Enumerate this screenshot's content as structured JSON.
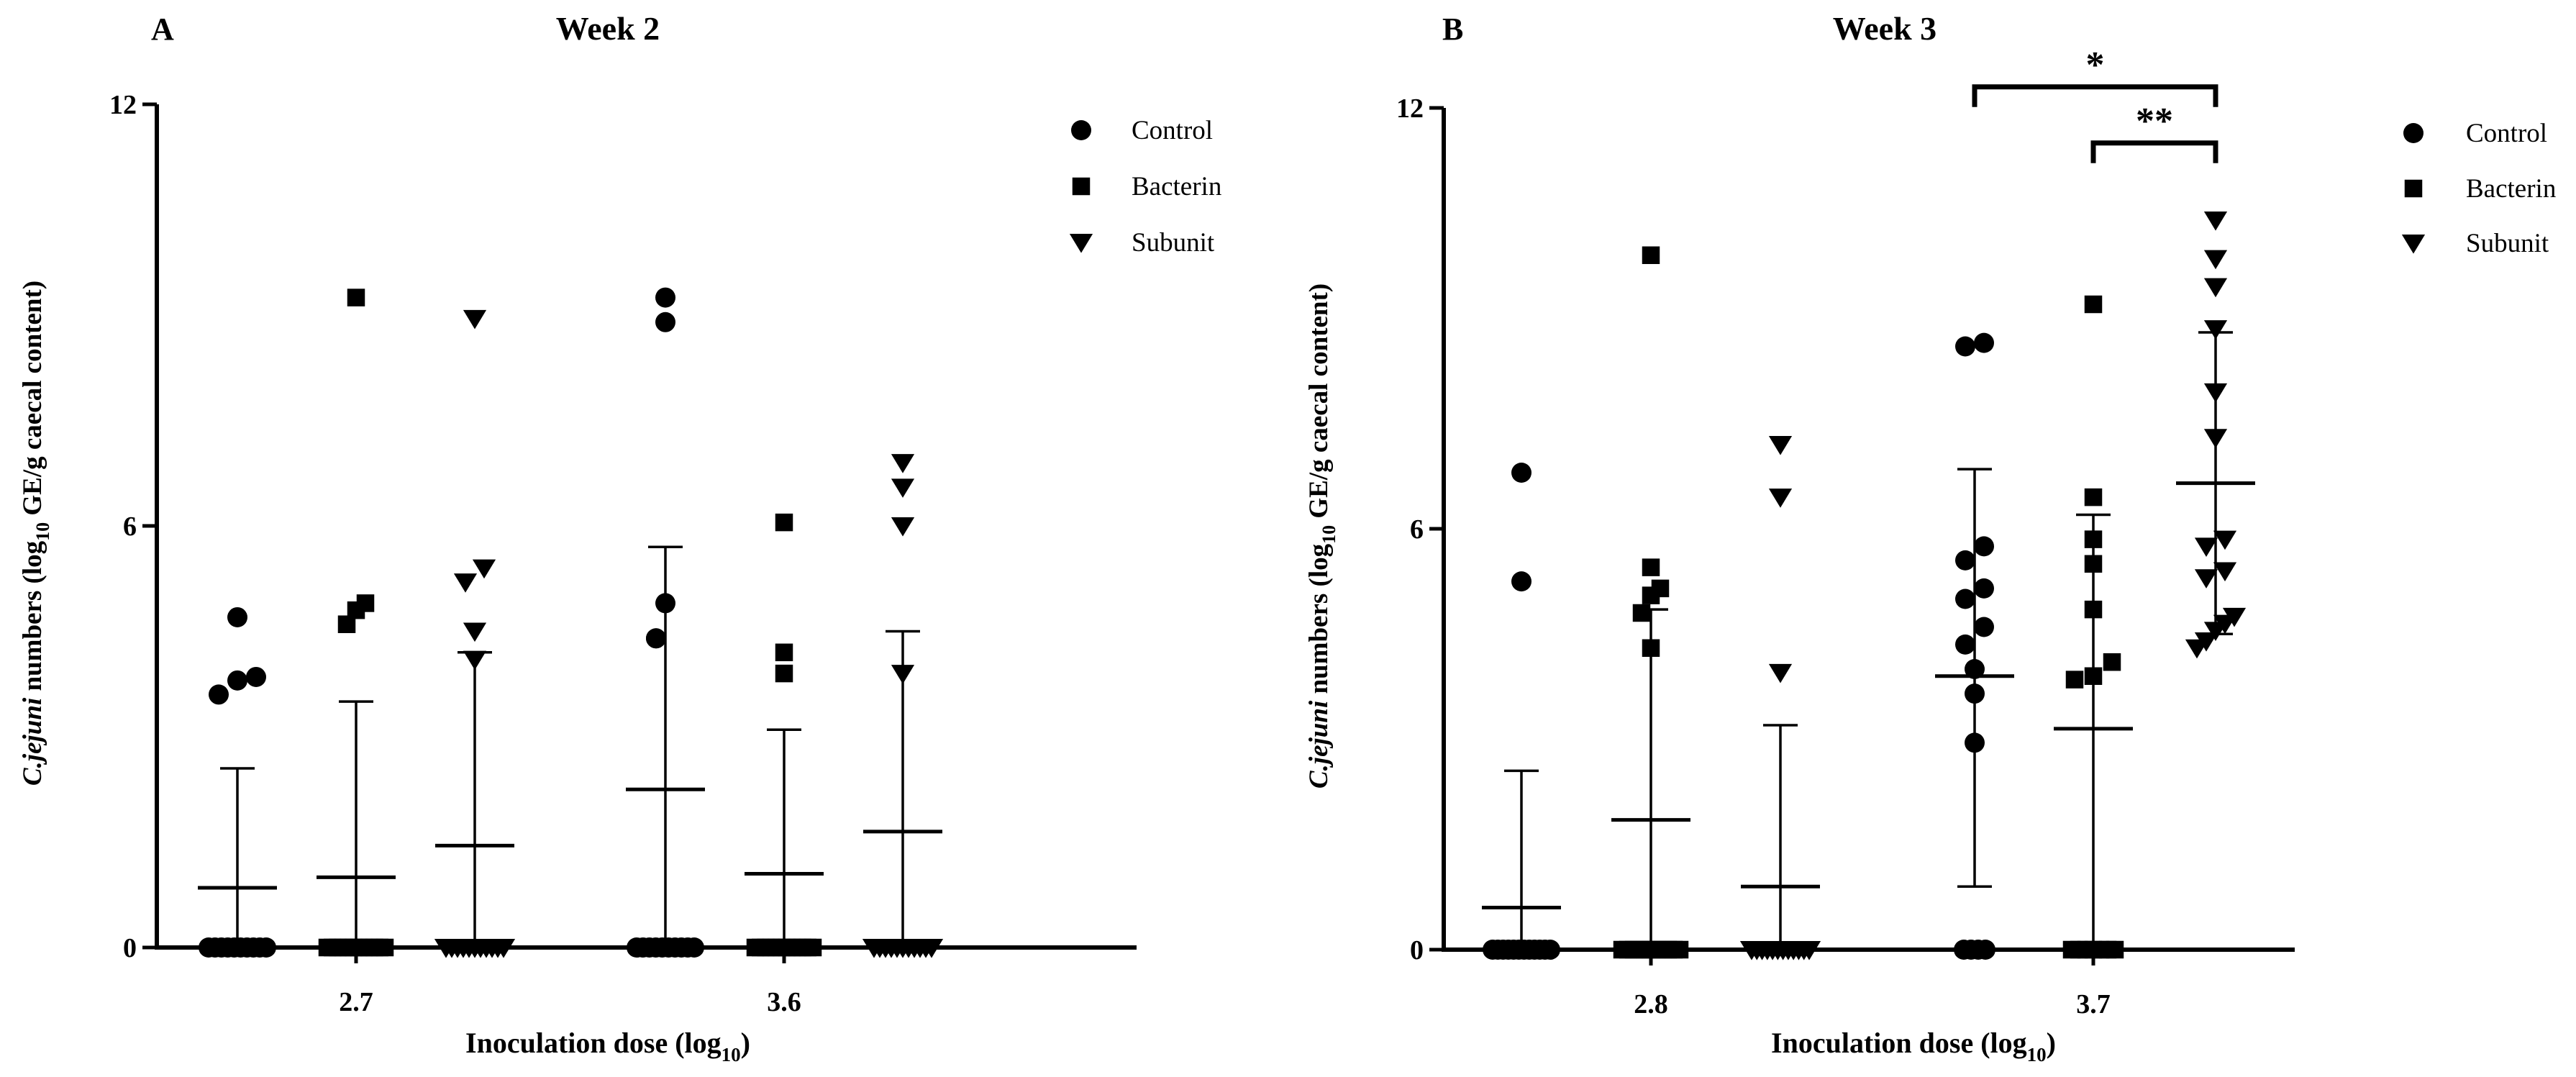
{
  "chart_data": [
    {
      "type": "scatter",
      "panel_letter": "A",
      "title": "Week 2",
      "xlabel_main": "Inoculation dose (log",
      "xlabel_sub": "10",
      "xlabel_close": ")",
      "ylabel_species": "C.jejuni",
      "ylabel_rest": " numbers (log",
      "ylabel_sub": "10",
      "ylabel_end": " GE/g caecal content)",
      "ylim": [
        0,
        12
      ],
      "yticks": [
        "0",
        "6",
        "12"
      ],
      "categories": [
        "2.7",
        "3.6"
      ],
      "legend": [
        "Control",
        "Bacterin",
        "Subunit"
      ],
      "series": [
        {
          "name": "Control",
          "marker": "circle",
          "groups": [
            {
              "dose": "2.7",
              "mean": 0.85,
              "upper": 2.55,
              "lower": 0,
              "values": [
                0,
                0,
                0,
                0,
                0,
                0,
                0,
                0,
                0,
                0,
                3.6,
                3.8,
                3.85,
                4.7
              ]
            },
            {
              "dose": "3.6",
              "mean": 2.25,
              "upper": 5.7,
              "lower": 0,
              "values": [
                0,
                0,
                0,
                0,
                0,
                0,
                0,
                0,
                0,
                0,
                4.4,
                4.4,
                4.9,
                8.9,
                9.25
              ]
            }
          ]
        },
        {
          "name": "Bacterin",
          "marker": "square",
          "groups": [
            {
              "dose": "2.7",
              "mean": 1.0,
              "upper": 3.5,
              "lower": 0,
              "values": [
                0,
                0,
                0,
                0,
                0,
                0,
                0,
                0,
                0,
                0,
                0,
                0,
                4.6,
                4.8,
                4.9,
                9.25
              ]
            },
            {
              "dose": "3.6",
              "mean": 1.05,
              "upper": 3.1,
              "lower": 0,
              "values": [
                0,
                0,
                0,
                0,
                0,
                0,
                0,
                0,
                0,
                0,
                0,
                0,
                3.9,
                4.2,
                6.05
              ]
            }
          ]
        },
        {
          "name": "Subunit",
          "marker": "triangle-down",
          "groups": [
            {
              "dose": "2.7",
              "mean": 1.45,
              "upper": 4.2,
              "lower": 0,
              "values": [
                0,
                0,
                0,
                0,
                0,
                0,
                0,
                0,
                0,
                0,
                0,
                4.1,
                4.5,
                5.2,
                5.4,
                8.95
              ]
            },
            {
              "dose": "3.6",
              "mean": 1.65,
              "upper": 4.5,
              "lower": 0,
              "values": [
                0,
                0,
                0,
                0,
                0,
                0,
                0,
                0,
                0,
                0,
                0,
                3.9,
                6.0,
                6.55,
                6.9
              ]
            }
          ]
        }
      ]
    },
    {
      "type": "scatter",
      "panel_letter": "B",
      "title": "Week 3",
      "xlabel_main": "Inoculation dose (log",
      "xlabel_sub": "10",
      "xlabel_close": ")",
      "ylabel_species": "C.jejuni",
      "ylabel_rest": " numbers (log",
      "ylabel_sub": "10",
      "ylabel_end": " GE/g caecal content)",
      "ylim": [
        0,
        12
      ],
      "yticks": [
        "0",
        "6",
        "12"
      ],
      "categories": [
        "2.8",
        "3.7"
      ],
      "legend": [
        "Control",
        "Bacterin",
        "Subunit"
      ],
      "significance": [
        {
          "label": "*",
          "from_dose": "3.7",
          "from_series": "Control",
          "to_dose": "3.7",
          "to_series": "Subunit",
          "level": 12.3
        },
        {
          "label": "**",
          "from_dose": "3.7",
          "from_series": "Bacterin",
          "to_dose": "3.7",
          "to_series": "Subunit",
          "level": 11.5
        }
      ],
      "series": [
        {
          "name": "Control",
          "marker": "circle",
          "groups": [
            {
              "dose": "2.8",
              "mean": 0.6,
              "upper": 2.55,
              "lower": 0,
              "values": [
                0,
                0,
                0,
                0,
                0,
                0,
                0,
                0,
                0,
                0,
                0,
                0,
                5.25,
                6.8
              ]
            },
            {
              "dose": "3.7",
              "mean": 3.9,
              "upper": 6.85,
              "lower": 0.9,
              "values": [
                0,
                0,
                0,
                0,
                2.95,
                3.65,
                4.0,
                4.35,
                4.6,
                5.0,
                5.15,
                5.55,
                5.75,
                8.6,
                8.65
              ]
            }
          ]
        },
        {
          "name": "Bacterin",
          "marker": "square",
          "groups": [
            {
              "dose": "2.8",
              "mean": 1.85,
              "upper": 4.85,
              "lower": 0,
              "values": [
                0,
                0,
                0,
                0,
                0,
                0,
                0,
                0,
                0,
                0,
                0,
                4.3,
                4.8,
                5.05,
                5.15,
                5.45,
                9.9
              ]
            },
            {
              "dose": "3.7",
              "mean": 3.15,
              "upper": 6.2,
              "lower": 0,
              "values": [
                0,
                0,
                0,
                0,
                0,
                0,
                0,
                3.85,
                3.9,
                4.1,
                4.85,
                5.5,
                5.85,
                6.45,
                9.2
              ]
            }
          ]
        },
        {
          "name": "Subunit",
          "marker": "triangle-down",
          "groups": [
            {
              "dose": "2.8",
              "mean": 0.9,
              "upper": 3.2,
              "lower": 0,
              "values": [
                0,
                0,
                0,
                0,
                0,
                0,
                0,
                0,
                0,
                0,
                0,
                0,
                3.95,
                6.45,
                7.2
              ]
            },
            {
              "dose": "3.7",
              "mean": 6.65,
              "upper": 8.8,
              "lower": 4.5,
              "values": [
                4.3,
                4.4,
                4.55,
                4.65,
                4.75,
                5.3,
                5.4,
                5.75,
                5.85,
                7.3,
                7.95,
                8.85,
                9.45,
                9.85,
                10.4
              ]
            }
          ]
        }
      ]
    }
  ]
}
